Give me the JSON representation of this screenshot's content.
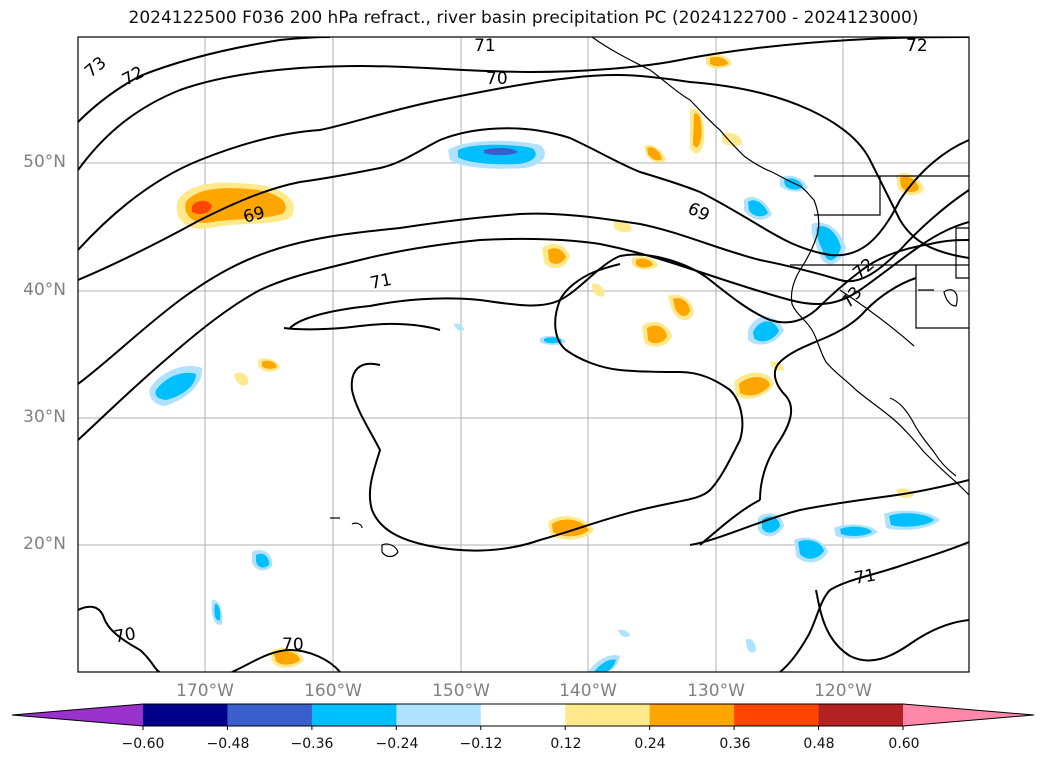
{
  "title": "2024122500 F036 200 hPa refract., river basin precipitation PC (2024122700 - 2024123000)",
  "map": {
    "lat_labels": [
      "50°N",
      "40°N",
      "30°N",
      "20°N"
    ],
    "lon_labels": [
      "170°W",
      "160°W",
      "150°W",
      "140°W",
      "130°W",
      "120°W"
    ],
    "contour_labels": [
      "73",
      "72",
      "71",
      "70",
      "72",
      "69",
      "71",
      "70",
      "69",
      "72",
      "73",
      "71",
      "70",
      "70"
    ],
    "contour_line_color": "#000000",
    "grid_color": "#b0b0b0"
  },
  "colorbar": {
    "tick_labels": [
      "−0.60",
      "−0.48",
      "−0.36",
      "−0.24",
      "−0.12",
      "0.12",
      "0.24",
      "0.36",
      "0.48",
      "0.60"
    ],
    "colors": [
      "#9932cc",
      "#00008b",
      "#3a5fcd",
      "#00bfff",
      "#b0e2ff",
      "#ffffff",
      "#ffe98a",
      "#ffa500",
      "#ff4500",
      "#b22222",
      "#ff88aa"
    ],
    "extend": "both"
  }
}
